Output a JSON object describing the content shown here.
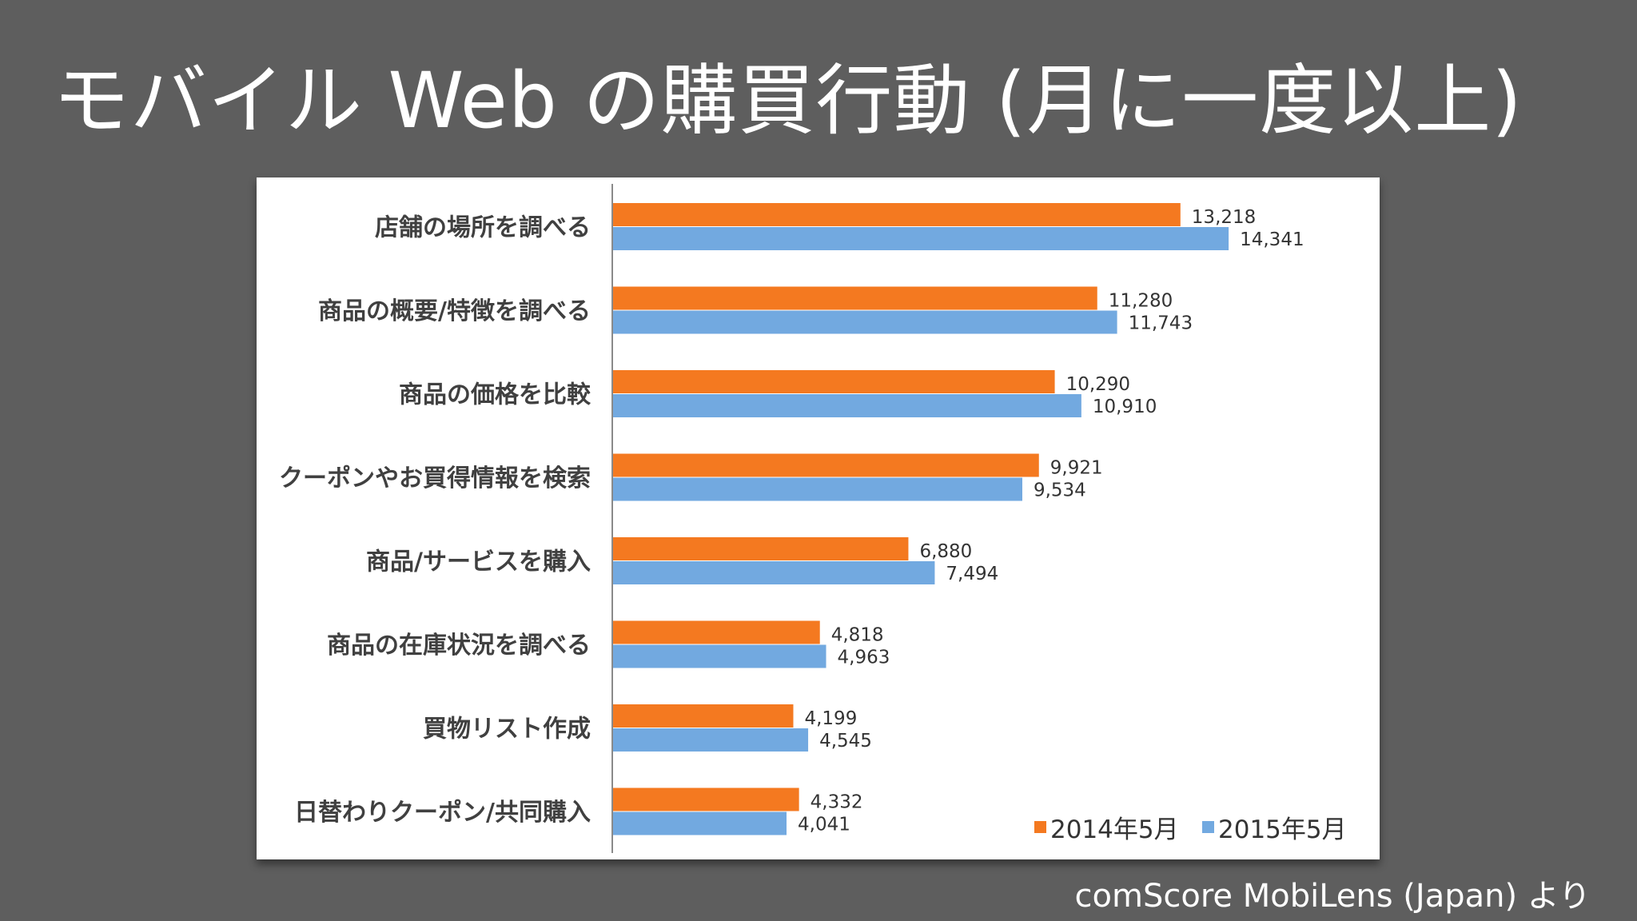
{
  "slide": {
    "title": "モバイル Web の購買行動 (月に一度以上)",
    "source": "comScore MobiLens (Japan) より"
  },
  "colors": {
    "background": "#5e5e5e",
    "series_2014": "#f47920",
    "series_2015": "#72a9e0",
    "label_text": "#404040"
  },
  "chart_data": {
    "type": "bar",
    "orientation": "horizontal",
    "title": "",
    "xlabel": "",
    "ylabel": "",
    "xlim": [
      0,
      16000
    ],
    "grid": false,
    "legend_position": "bottom-right",
    "categories": [
      "店舗の場所を調べる",
      "商品の概要/特徴を調べる",
      "商品の価格を比較",
      "クーポンやお買得情報を検索",
      "商品/サービスを購入",
      "商品の在庫状況を調べる",
      "買物リスト作成",
      "日替わりクーポン/共同購入"
    ],
    "series": [
      {
        "name": "2014年5月",
        "color": "#f47920",
        "values": [
          13218,
          11280,
          10290,
          9921,
          6880,
          4818,
          4199,
          4332
        ],
        "labels": [
          "13,218",
          "11,280",
          "10,290",
          "9,921",
          "6,880",
          "4,818",
          "4,199",
          "4,332"
        ]
      },
      {
        "name": "2015年5月",
        "color": "#72a9e0",
        "values": [
          14341,
          11743,
          10910,
          9534,
          7494,
          4963,
          4545,
          4041
        ],
        "labels": [
          "14,341",
          "11,743",
          "10,910",
          "9,534",
          "7,494",
          "4,963",
          "4,545",
          "4,041"
        ]
      }
    ]
  }
}
